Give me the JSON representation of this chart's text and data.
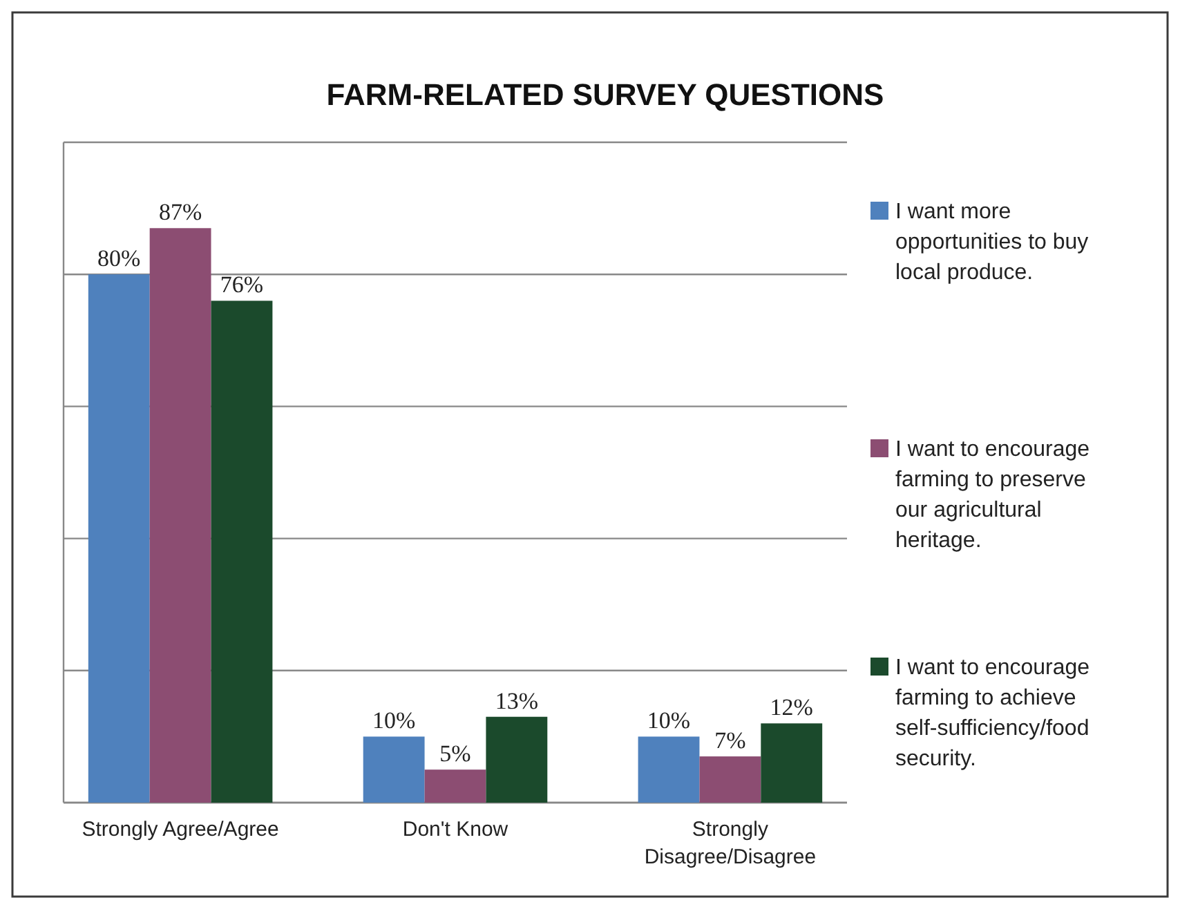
{
  "chart_data": {
    "type": "bar",
    "title": "FARM-RELATED SURVEY QUESTIONS",
    "categories": [
      "Strongly Agree/Agree",
      "Don't Know",
      "Strongly Disagree/Disagree"
    ],
    "series": [
      {
        "name": "I want more opportunities to buy local produce.",
        "color": "#4f81bd",
        "values": [
          80,
          10,
          10
        ],
        "value_labels": [
          "80%",
          "10%",
          "10%"
        ]
      },
      {
        "name": "I want to encourage farming to preserve our agricultural heritage.",
        "color": "#8c4d72",
        "values": [
          87,
          5,
          7
        ],
        "value_labels": [
          "87%",
          "5%",
          "7%"
        ]
      },
      {
        "name": "I want to encourage farming to achieve self-sufficiency/food security.",
        "color": "#1b4a2c",
        "values": [
          76,
          13,
          12
        ],
        "value_labels": [
          "76%",
          "13%",
          "12%"
        ]
      }
    ],
    "ylim": [
      0,
      100
    ],
    "yticks": [
      {
        "value": 0,
        "label": null
      },
      {
        "value": 20,
        "label": null
      },
      {
        "value": 40,
        "label": null
      },
      {
        "value": 60,
        "label": null
      },
      {
        "value": 80,
        "label": null
      },
      {
        "value": 100,
        "label": null
      }
    ],
    "tick_labels": "x",
    "grid": "y",
    "legend": "right"
  }
}
